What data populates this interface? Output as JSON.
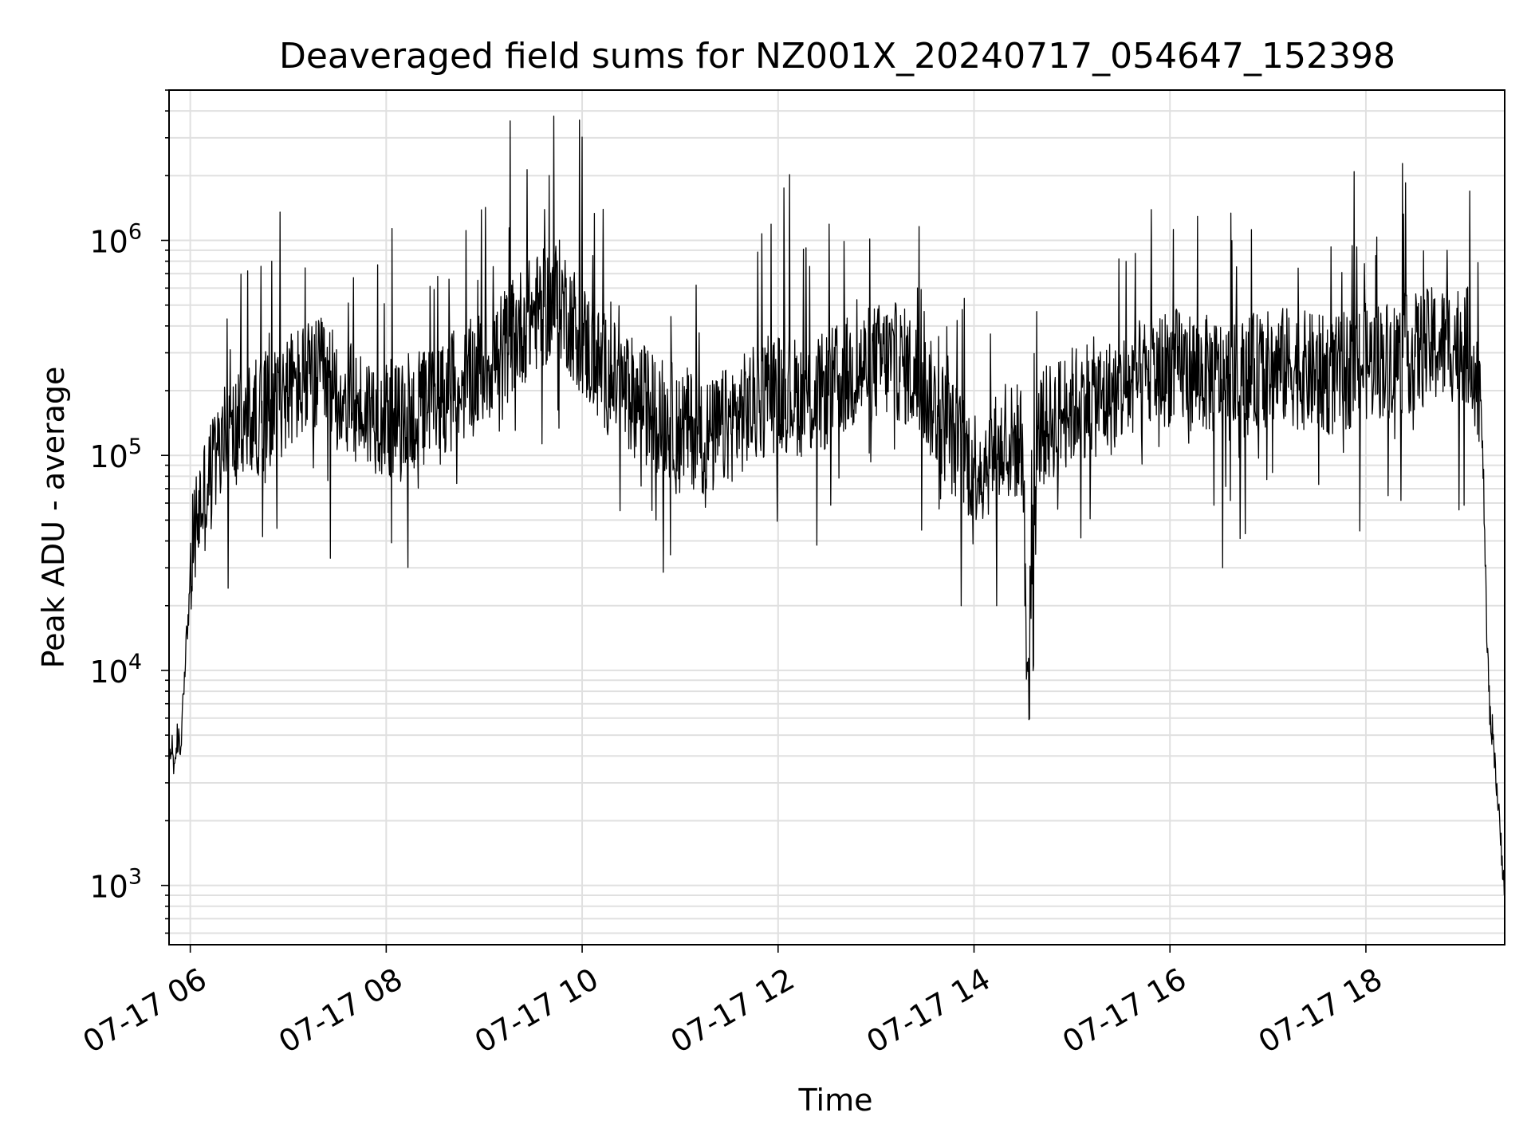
{
  "chart_data": {
    "type": "line",
    "title": "Deaveraged field sums for NZ001X_20240717_054647_152398",
    "xlabel": "Time",
    "ylabel": "Peak ADU - average",
    "x_date": "2024-07-17",
    "xlim": [
      "2024-07-17 05:47",
      "2024-07-17 19:25"
    ],
    "ylim": [
      530,
      5000000
    ],
    "yscale": "log",
    "x_ticks": [
      "2024-07-17 06:00",
      "2024-07-17 08:00",
      "2024-07-17 10:00",
      "2024-07-17 12:00",
      "2024-07-17 14:00",
      "2024-07-17 16:00",
      "2024-07-17 18:00"
    ],
    "x_tick_labels": [
      "07-17 06",
      "07-17 08",
      "07-17 10",
      "07-17 12",
      "07-17 14",
      "07-17 16",
      "07-17 18"
    ],
    "y_ticks": [
      1000,
      10000,
      100000,
      1000000
    ],
    "y_tick_labels": [
      {
        "base": "10",
        "exp": "3"
      },
      {
        "base": "10",
        "exp": "4"
      },
      {
        "base": "10",
        "exp": "5"
      },
      {
        "base": "10",
        "exp": "6"
      }
    ],
    "grid": true,
    "line_color": "#000000",
    "grid_color": "#e0e0e0",
    "series": [
      {
        "x": [
          "05:47",
          "05:49",
          "05:51",
          "05:52",
          "05:54",
          "05:56",
          "05:58",
          "06:00",
          "06:02",
          "06:05",
          "06:10",
          "06:15",
          "06:20",
          "06:25",
          "06:30",
          "06:40",
          "06:50",
          "07:00",
          "07:10",
          "07:20",
          "07:30",
          "07:40",
          "07:50",
          "08:00",
          "08:10",
          "08:20",
          "08:30",
          "08:40",
          "08:50",
          "09:00",
          "09:10",
          "09:20",
          "09:30",
          "09:40",
          "09:45",
          "09:50",
          "10:00",
          "10:10",
          "10:20",
          "10:30",
          "10:40",
          "10:50",
          "11:00",
          "11:10",
          "11:20",
          "11:30",
          "11:40",
          "11:50",
          "12:00",
          "12:10",
          "12:20",
          "12:30",
          "12:40",
          "12:50",
          "13:00",
          "13:10",
          "13:20",
          "13:30",
          "13:40",
          "13:50",
          "14:00",
          "14:10",
          "14:20",
          "14:30",
          "14:32",
          "14:40",
          "14:50",
          "15:00",
          "15:10",
          "15:20",
          "15:30",
          "15:40",
          "15:50",
          "16:00",
          "16:10",
          "16:20",
          "16:30",
          "16:40",
          "16:50",
          "17:00",
          "17:10",
          "17:20",
          "17:30",
          "17:40",
          "17:50",
          "18:00",
          "18:10",
          "18:20",
          "18:30",
          "18:40",
          "18:50",
          "19:00",
          "19:05",
          "19:10",
          "19:12",
          "19:14",
          "19:16",
          "19:18",
          "19:20",
          "19:22",
          "19:25"
        ],
        "y": [
          4000,
          4500,
          3200,
          5000,
          4200,
          9000,
          15000,
          25000,
          40000,
          55000,
          70000,
          90000,
          110000,
          120000,
          130000,
          150000,
          170000,
          200000,
          220000,
          230000,
          200000,
          170000,
          160000,
          150000,
          140000,
          160000,
          180000,
          200000,
          220000,
          260000,
          300000,
          380000,
          450000,
          500000,
          550000,
          480000,
          350000,
          260000,
          220000,
          190000,
          170000,
          150000,
          140000,
          130000,
          120000,
          140000,
          160000,
          180000,
          200000,
          190000,
          180000,
          200000,
          230000,
          250000,
          270000,
          280000,
          250000,
          200000,
          150000,
          110000,
          90000,
          100000,
          110000,
          120000,
          10000,
          130000,
          150000,
          170000,
          190000,
          180000,
          200000,
          220000,
          240000,
          260000,
          250000,
          240000,
          230000,
          220000,
          240000,
          250000,
          260000,
          250000,
          240000,
          230000,
          250000,
          270000,
          280000,
          290000,
          300000,
          320000,
          330000,
          340000,
          300000,
          200000,
          80000,
          15000,
          6000,
          5000,
          3000,
          1800,
          1000
        ]
      }
    ]
  }
}
